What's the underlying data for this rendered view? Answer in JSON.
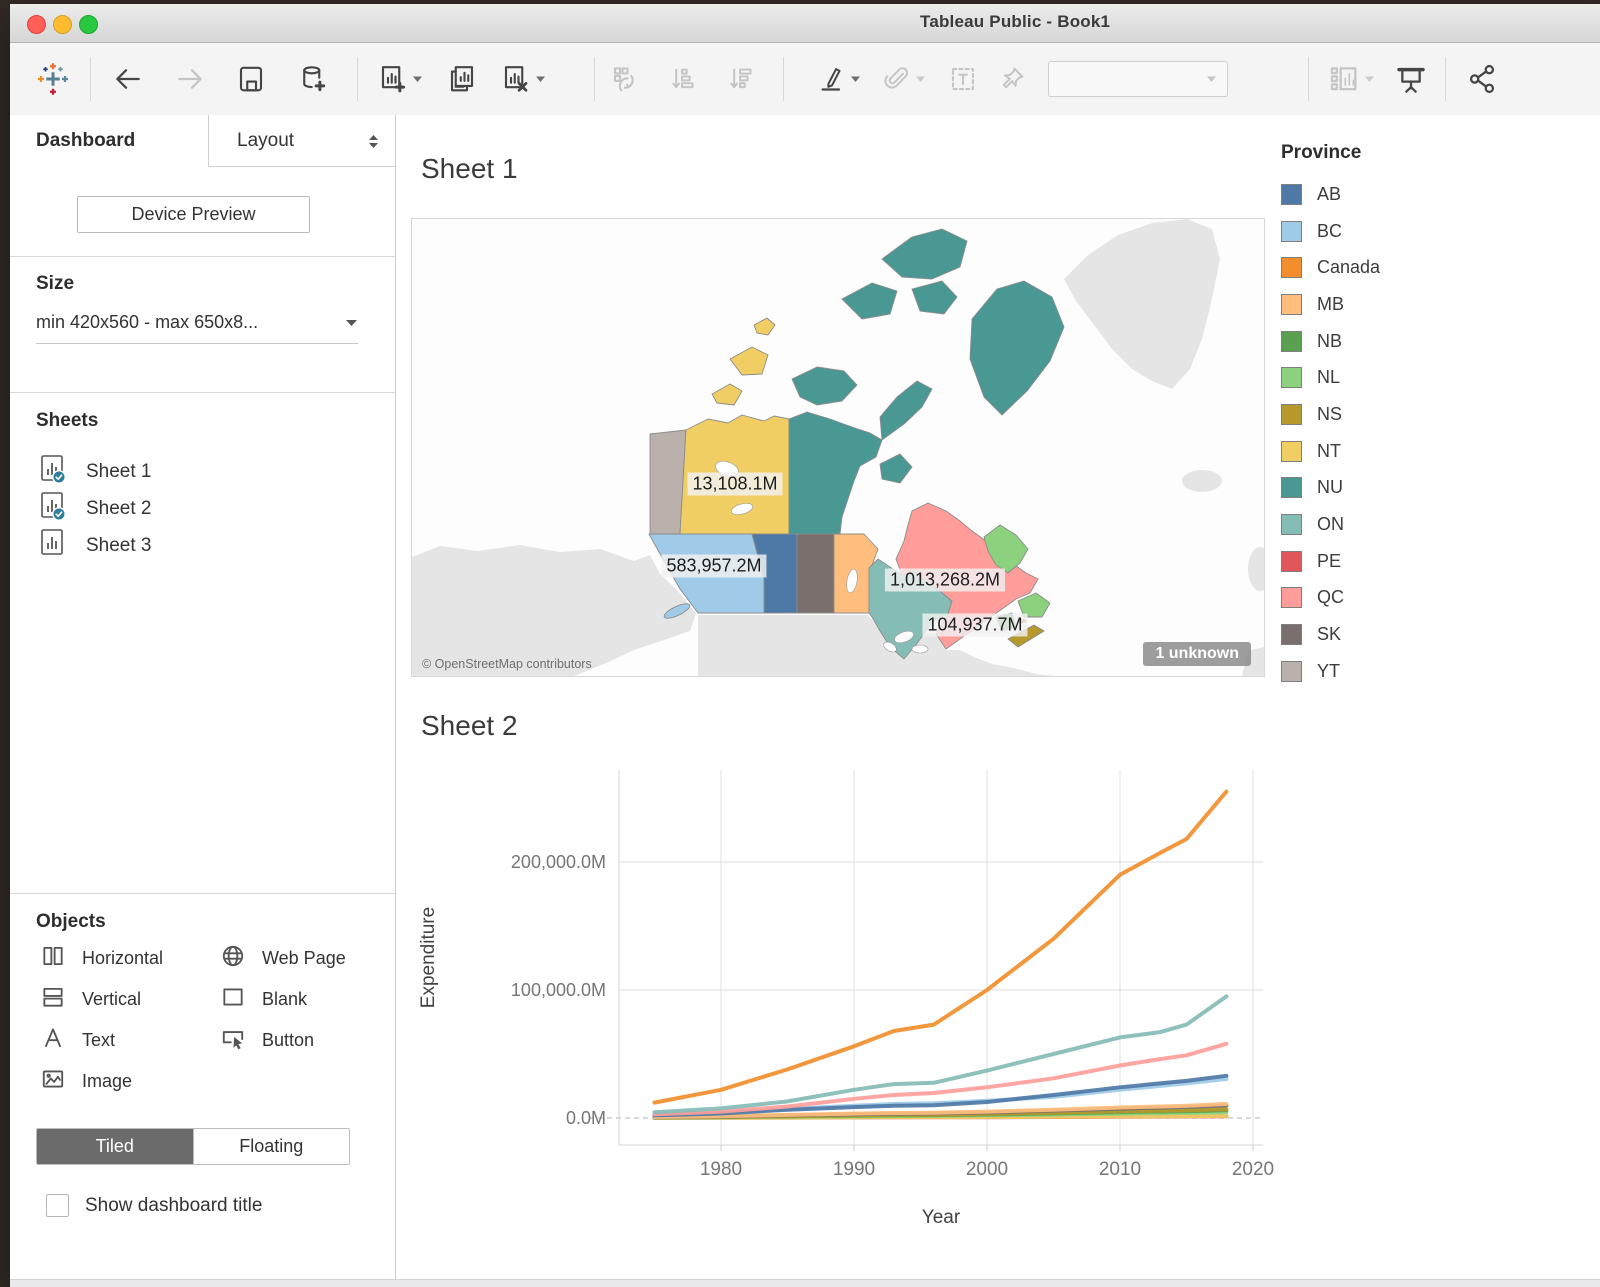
{
  "window": {
    "title": "Tableau Public - Book1"
  },
  "toolbar": {
    "buttons": [
      {
        "id": "tableau-logo",
        "icon": "tableau-logo",
        "enabled": true,
        "caret": false,
        "group": 0
      },
      {
        "id": "undo-button",
        "icon": "arrow-left",
        "enabled": true,
        "caret": false,
        "group": 1
      },
      {
        "id": "redo-button",
        "icon": "arrow-right",
        "enabled": false,
        "caret": false,
        "group": 1
      },
      {
        "id": "save-button",
        "icon": "save",
        "enabled": true,
        "caret": false,
        "group": 1
      },
      {
        "id": "add-data-button",
        "icon": "datasource-add",
        "enabled": true,
        "caret": false,
        "group": 1
      },
      {
        "id": "new-worksheet-button",
        "icon": "sheet-new",
        "enabled": true,
        "caret": true,
        "group": 2
      },
      {
        "id": "duplicate-sheet-button",
        "icon": "sheet-duplicate",
        "enabled": true,
        "caret": false,
        "group": 2
      },
      {
        "id": "clear-sheet-button",
        "icon": "sheet-clear",
        "enabled": true,
        "caret": true,
        "group": 2
      },
      {
        "id": "swap-button",
        "icon": "swap",
        "enabled": false,
        "caret": false,
        "group": 3
      },
      {
        "id": "sort-asc-button",
        "icon": "sort-asc",
        "enabled": false,
        "caret": false,
        "group": 3
      },
      {
        "id": "sort-desc-button",
        "icon": "sort-desc",
        "enabled": false,
        "caret": false,
        "group": 3
      },
      {
        "id": "highlight-button",
        "icon": "highlight-pen",
        "enabled": true,
        "caret": true,
        "group": 4
      },
      {
        "id": "group-button",
        "icon": "paperclip",
        "enabled": false,
        "caret": true,
        "group": 4
      },
      {
        "id": "text-label-button",
        "icon": "text-box",
        "enabled": false,
        "caret": false,
        "group": 4
      },
      {
        "id": "pin-button",
        "icon": "pin",
        "enabled": false,
        "caret": false,
        "group": 4
      },
      {
        "id": "fit-combobox",
        "icon": "combobox",
        "enabled": false,
        "caret": true,
        "group": 4
      },
      {
        "id": "show-cards-button",
        "icon": "show-cards",
        "enabled": false,
        "caret": true,
        "group": 5
      },
      {
        "id": "presentation-button",
        "icon": "presentation",
        "enabled": true,
        "caret": false,
        "group": 5
      },
      {
        "id": "share-button",
        "icon": "share",
        "enabled": true,
        "caret": false,
        "group": 6
      }
    ]
  },
  "sidebar": {
    "tabs": {
      "dashboard": "Dashboard",
      "layout": "Layout"
    },
    "device_preview_label": "Device Preview",
    "size": {
      "header": "Size",
      "value": "min 420x560 - max 650x8..."
    },
    "sheets": {
      "header": "Sheets",
      "items": [
        {
          "label": "Sheet 1",
          "in_dashboard": true
        },
        {
          "label": "Sheet 2",
          "in_dashboard": true
        },
        {
          "label": "Sheet 3",
          "in_dashboard": false
        }
      ]
    },
    "objects": {
      "header": "Objects",
      "items": [
        {
          "label": "Horizontal",
          "icon": "horizontal-icon"
        },
        {
          "label": "Web Page",
          "icon": "webpage-icon"
        },
        {
          "label": "Vertical",
          "icon": "vertical-icon"
        },
        {
          "label": "Blank",
          "icon": "blank-icon"
        },
        {
          "label": "Text",
          "icon": "text-icon"
        },
        {
          "label": "Button",
          "icon": "button-icon"
        },
        {
          "label": "Image",
          "icon": "image-icon"
        }
      ]
    },
    "tiled_label": "Tiled",
    "floating_label": "Floating",
    "show_title_label": "Show dashboard title"
  },
  "dashboard": {
    "sheet1_title": "Sheet 1",
    "sheet2_title": "Sheet 2",
    "map": {
      "attribution": "© OpenStreetMap contributors",
      "unknown_badge": "1 unknown",
      "labels": [
        "13,108.1M",
        "583,957.2M",
        "1,013,268.2M",
        "104,937.7M"
      ]
    },
    "legend": {
      "title": "Province",
      "items": [
        {
          "code": "AB",
          "label": "AB",
          "color": "#4e79a7"
        },
        {
          "code": "BC",
          "label": "BC",
          "color": "#a0cbe8"
        },
        {
          "code": "CA",
          "label": "Canada",
          "color": "#f28e2b"
        },
        {
          "code": "MB",
          "label": "MB",
          "color": "#ffbe7d"
        },
        {
          "code": "NB",
          "label": "NB",
          "color": "#59a14f"
        },
        {
          "code": "NL",
          "label": "NL",
          "color": "#8cd17d"
        },
        {
          "code": "NS",
          "label": "NS",
          "color": "#b6992d"
        },
        {
          "code": "NT",
          "label": "NT",
          "color": "#f1ce63"
        },
        {
          "code": "NU",
          "label": "NU",
          "color": "#499894"
        },
        {
          "code": "ON",
          "label": "ON",
          "color": "#86bcb6"
        },
        {
          "code": "PE",
          "label": "PE",
          "color": "#e15759"
        },
        {
          "code": "QC",
          "label": "QC",
          "color": "#ff9d9a"
        },
        {
          "code": "SK",
          "label": "SK",
          "color": "#79706e"
        },
        {
          "code": "YT",
          "label": "YT",
          "color": "#bab0ac"
        }
      ]
    }
  },
  "chart_data": {
    "type": "line",
    "title": "Sheet 2",
    "xlabel": "Year",
    "ylabel": "Expenditure",
    "grid": true,
    "legend_position": "none",
    "xlim": [
      1972,
      2021
    ],
    "ylim": [
      0,
      272000
    ],
    "x_ticks": [
      1980,
      1990,
      2000,
      2010,
      2020
    ],
    "y_ticks": [
      {
        "label": "0.0M",
        "value": 0
      },
      {
        "label": "100,000.0M",
        "value": 100000
      },
      {
        "label": "200,000.0M",
        "value": 200000
      }
    ],
    "x": [
      1975,
      1980,
      1985,
      1990,
      1993,
      1996,
      2000,
      2005,
      2010,
      2013,
      2015,
      2018
    ],
    "series": [
      {
        "name": "Canada",
        "color": "#f28e2b",
        "values": [
          12000,
          22000,
          38000,
          56000,
          68000,
          73000,
          100000,
          140000,
          190000,
          207000,
          218000,
          255000
        ]
      },
      {
        "name": "ON",
        "color": "#86bcb6",
        "values": [
          4500,
          7500,
          13000,
          22000,
          26500,
          27500,
          37000,
          50000,
          63000,
          67000,
          73000,
          95000
        ]
      },
      {
        "name": "QC",
        "color": "#ff9d9a",
        "values": [
          3000,
          5000,
          9000,
          15000,
          18000,
          19500,
          24000,
          31000,
          41000,
          46000,
          49000,
          58000
        ]
      },
      {
        "name": "AB",
        "color": "#4e79a7",
        "values": [
          2000,
          3500,
          6500,
          8500,
          9500,
          10000,
          12500,
          18000,
          24000,
          27000,
          29000,
          33000
        ]
      },
      {
        "name": "BC",
        "color": "#a0cbe8",
        "values": [
          2500,
          4200,
          7000,
          9500,
          11000,
          11500,
          13500,
          16500,
          22000,
          25000,
          27000,
          30500
        ]
      },
      {
        "name": "MB",
        "color": "#ffbe7d",
        "values": [
          800,
          1400,
          2400,
          3400,
          3900,
          4100,
          5000,
          6500,
          8200,
          9000,
          9600,
          11000
        ]
      },
      {
        "name": "SK",
        "color": "#79706e",
        "values": [
          700,
          1200,
          2100,
          3000,
          3400,
          3600,
          4400,
          5800,
          7300,
          8100,
          8600,
          9800
        ]
      },
      {
        "name": "NS",
        "color": "#b6992d",
        "values": [
          550,
          900,
          1500,
          2200,
          2500,
          2600,
          3200,
          4100,
          5200,
          5700,
          6000,
          6800
        ]
      },
      {
        "name": "NB",
        "color": "#59a14f",
        "values": [
          450,
          800,
          1300,
          1900,
          2200,
          2300,
          2800,
          3600,
          4600,
          5000,
          5300,
          6000
        ]
      },
      {
        "name": "NL",
        "color": "#8cd17d",
        "values": [
          350,
          600,
          1000,
          1400,
          1600,
          1700,
          2100,
          2700,
          3400,
          3800,
          4000,
          4500
        ]
      },
      {
        "name": "NT",
        "color": "#f1ce63",
        "values": [
          120,
          200,
          340,
          480,
          560,
          600,
          740,
          950,
          1200,
          1350,
          1450,
          1650
        ]
      },
      {
        "name": "PE",
        "color": "#e15759",
        "values": [
          100,
          180,
          300,
          420,
          480,
          520,
          640,
          820,
          1050,
          1150,
          1250,
          1400
        ]
      }
    ]
  }
}
